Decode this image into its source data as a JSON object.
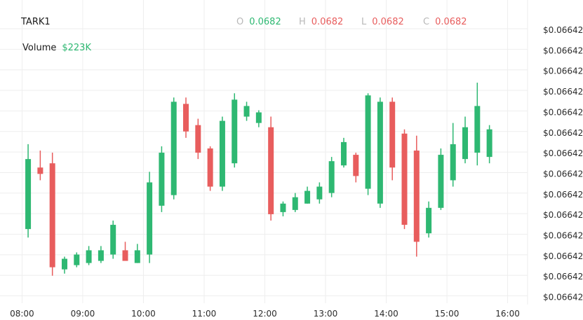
{
  "header": {
    "symbol": "TARK1",
    "volume_label": "Volume",
    "volume_value": "$223K",
    "ohlc": [
      {
        "key": "O",
        "value": "0.0682",
        "color": "#2eb872"
      },
      {
        "key": "H",
        "value": "0.0682",
        "color": "#e85d5d"
      },
      {
        "key": "L",
        "value": "0.0682",
        "color": "#e85d5d"
      },
      {
        "key": "C",
        "value": "0.0682",
        "color": "#e85d5d"
      }
    ]
  },
  "colors": {
    "up": "#2eb872",
    "down": "#e85d5d",
    "grid": "#eeeeee"
  },
  "chart_data": {
    "type": "candlestick",
    "y_tick_labels": [
      "$0.06642",
      "$0.06642",
      "$0.06642",
      "$0.06642",
      "$0.06642",
      "$0.06642",
      "$0.06642",
      "$0.06642",
      "$0.06642",
      "$0.06642",
      "$0.06642",
      "$0.06642",
      "$0.06642",
      "$0.06642"
    ],
    "x_ticks": [
      "08:00",
      "09:00",
      "10:00",
      "11:00",
      "12:00",
      "13:00",
      "14:00",
      "15:00",
      "16:00"
    ],
    "x_range": [
      "07:50",
      "16:10"
    ],
    "y_range": [
      0,
      100
    ],
    "grid": true,
    "candles": [
      {
        "t": "08:06",
        "o": 29,
        "h": 69,
        "l": 25,
        "c": 62
      },
      {
        "t": "08:18",
        "o": 58,
        "h": 66,
        "l": 52,
        "c": 55
      },
      {
        "t": "08:30",
        "o": 60,
        "h": 65,
        "l": 7,
        "c": 11
      },
      {
        "t": "08:42",
        "o": 10,
        "h": 16,
        "l": 8,
        "c": 15
      },
      {
        "t": "08:54",
        "o": 12,
        "h": 18,
        "l": 11,
        "c": 17
      },
      {
        "t": "09:06",
        "o": 13,
        "h": 21,
        "l": 12,
        "c": 19
      },
      {
        "t": "09:18",
        "o": 14,
        "h": 21,
        "l": 13,
        "c": 19
      },
      {
        "t": "09:30",
        "o": 17,
        "h": 33,
        "l": 15,
        "c": 31
      },
      {
        "t": "09:42",
        "o": 19,
        "h": 23,
        "l": 15,
        "c": 14
      },
      {
        "t": "09:54",
        "o": 13,
        "h": 22,
        "l": 13,
        "c": 19
      },
      {
        "t": "10:06",
        "o": 17,
        "h": 56,
        "l": 13,
        "c": 51
      },
      {
        "t": "10:18",
        "o": 40,
        "h": 68,
        "l": 37,
        "c": 65
      },
      {
        "t": "10:30",
        "o": 45,
        "h": 91,
        "l": 43,
        "c": 89
      },
      {
        "t": "10:42",
        "o": 88,
        "h": 91,
        "l": 72,
        "c": 75
      },
      {
        "t": "10:54",
        "o": 78,
        "h": 81,
        "l": 62,
        "c": 65
      },
      {
        "t": "11:06",
        "o": 67,
        "h": 68,
        "l": 47,
        "c": 49
      },
      {
        "t": "11:18",
        "o": 49,
        "h": 82,
        "l": 47,
        "c": 80
      },
      {
        "t": "11:30",
        "o": 60,
        "h": 93,
        "l": 58,
        "c": 90
      },
      {
        "t": "11:42",
        "o": 82,
        "h": 89,
        "l": 80,
        "c": 87
      },
      {
        "t": "11:54",
        "o": 79,
        "h": 85,
        "l": 77,
        "c": 84
      },
      {
        "t": "12:06",
        "o": 77,
        "h": 82,
        "l": 33,
        "c": 36
      },
      {
        "t": "12:18",
        "o": 37,
        "h": 42,
        "l": 35,
        "c": 41
      },
      {
        "t": "12:30",
        "o": 38,
        "h": 46,
        "l": 37,
        "c": 44
      },
      {
        "t": "12:42",
        "o": 41,
        "h": 49,
        "l": 41,
        "c": 47
      },
      {
        "t": "12:54",
        "o": 43,
        "h": 51,
        "l": 41,
        "c": 49
      },
      {
        "t": "13:06",
        "o": 46,
        "h": 63,
        "l": 44,
        "c": 61
      },
      {
        "t": "13:18",
        "o": 59,
        "h": 72,
        "l": 58,
        "c": 70
      },
      {
        "t": "13:30",
        "o": 64,
        "h": 65,
        "l": 51,
        "c": 54
      },
      {
        "t": "13:42",
        "o": 48,
        "h": 93,
        "l": 45,
        "c": 92
      },
      {
        "t": "13:54",
        "o": 41,
        "h": 91,
        "l": 39,
        "c": 89
      },
      {
        "t": "14:06",
        "o": 89,
        "h": 91,
        "l": 52,
        "c": 58
      },
      {
        "t": "14:18",
        "o": 74,
        "h": 76,
        "l": 29,
        "c": 31
      },
      {
        "t": "14:30",
        "o": 66,
        "h": 73,
        "l": 16,
        "c": 23
      },
      {
        "t": "14:42",
        "o": 27,
        "h": 42,
        "l": 25,
        "c": 39
      },
      {
        "t": "14:54",
        "o": 39,
        "h": 67,
        "l": 38,
        "c": 64
      },
      {
        "t": "15:06",
        "o": 52,
        "h": 79,
        "l": 49,
        "c": 69
      },
      {
        "t": "15:18",
        "o": 62,
        "h": 82,
        "l": 60,
        "c": 77
      },
      {
        "t": "15:30",
        "o": 65,
        "h": 98,
        "l": 59,
        "c": 87
      },
      {
        "t": "15:42",
        "o": 63,
        "h": 78,
        "l": 60,
        "c": 76
      }
    ]
  }
}
